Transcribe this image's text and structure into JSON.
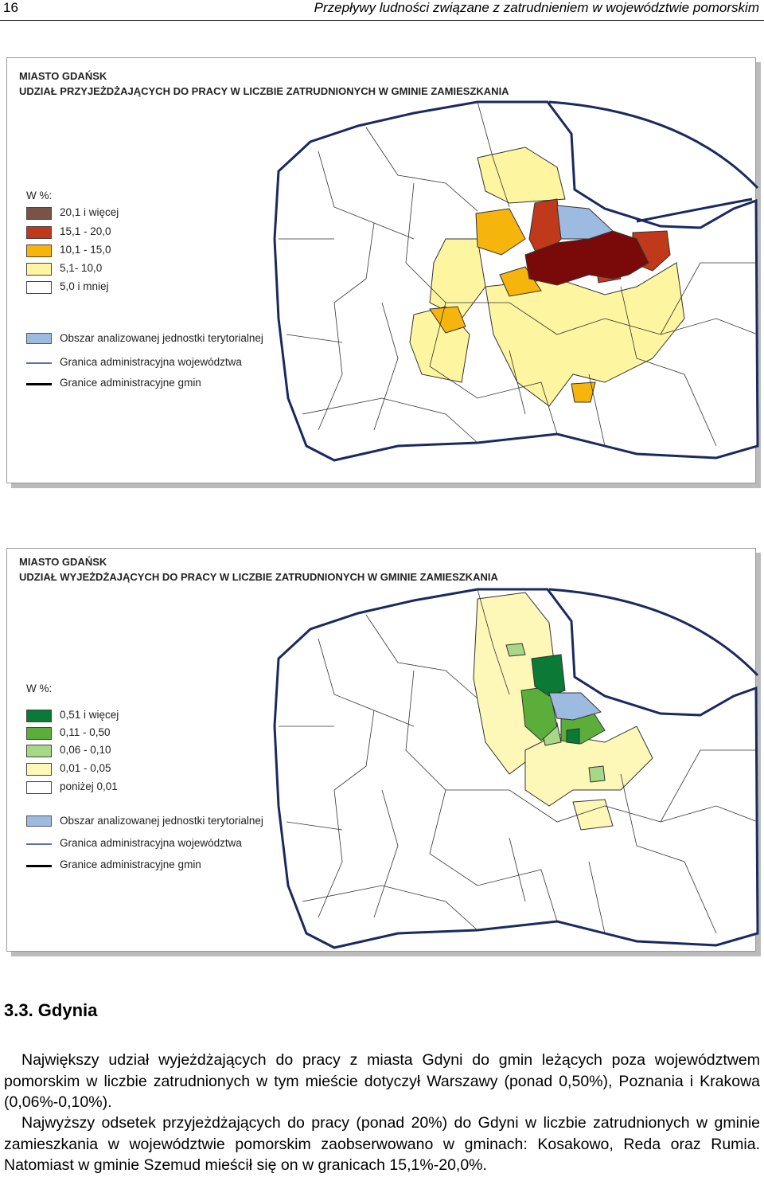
{
  "header": {
    "page_number": "16",
    "title": "Przepływy ludności związane z zatrudnieniem w województwie pomorskim"
  },
  "maps": [
    {
      "title_line1": "MIASTO  GDAŃSK",
      "title_line2": "UDZIAŁ  PRZYJEŻDŻAJĄCYCH  DO  PRACY  W  LICZBIE  ZATRUDNIONYCH  W  GMINIE  ZAMIESZKANIA",
      "legend_heading": "W %:",
      "classes": [
        {
          "label": "20,1 i więcej",
          "color": "#7a5246"
        },
        {
          "label": "15,1 - 20,0",
          "color": "#c0391b"
        },
        {
          "label": "10,1 - 15,0",
          "color": "#f5b50c"
        },
        {
          "label": "5,1- 10,0",
          "color": "#fdf5a0"
        },
        {
          "label": "5,0 i mniej",
          "color": "#ffffff"
        }
      ],
      "symbols": [
        {
          "label": "Obszar analizowanej jednostki terytorialnej",
          "color": "#9dbbe0"
        },
        {
          "label": "Granica administracyjna województwa",
          "color": "#5b6fb0"
        },
        {
          "label": "Granice administracyjne gmin",
          "color": "#000000"
        }
      ]
    },
    {
      "title_line1": "MIASTO  GDAŃSK",
      "title_line2": "UDZIAŁ  WYJEŻDŻAJĄCYCH  DO  PRACY  W  LICZBIE  ZATRUDNIONYCH  W  GMINIE  ZAMIESZKANIA",
      "legend_heading": "W %:",
      "classes": [
        {
          "label": "0,51 i więcej",
          "color": "#0a7a36"
        },
        {
          "label": "0,11 - 0,50",
          "color": "#5cae3a"
        },
        {
          "label": "0,06 - 0,10",
          "color": "#a6d887"
        },
        {
          "label": "0,01 - 0,05",
          "color": "#fdf7b8"
        },
        {
          "label": "poniżej 0,01",
          "color": "#ffffff"
        }
      ],
      "symbols": [
        {
          "label": "Obszar analizowanej jednostki terytorialnej",
          "color": "#9dbbe0"
        },
        {
          "label": "Granica administracyjna województwa",
          "color": "#5b6fb0"
        },
        {
          "label": "Granice administracyjne gmin",
          "color": "#000000"
        }
      ]
    }
  ],
  "section": {
    "heading": "3.3. Gdynia",
    "paragraphs": [
      "Największy udział wyjeżdżających do pracy z miasta Gdyni do gmin leżących poza województwem pomorskim w liczbie zatrudnionych w tym mieście dotyczył Warszawy (ponad 0,50%), Poznania i Krakowa (0,06%-0,10%).",
      "Najwyższy odsetek przyjeżdżających do pracy (ponad 20%) do Gdyni w liczbie zatrudnionych w gminie zamieszkania w województwie pomorskim zaobserwowano w gminach: Kosakowo, Reda oraz Rumia. Natomiast w gminie Szemud mieścił się on w granicach 15,1%-20,0%."
    ]
  }
}
